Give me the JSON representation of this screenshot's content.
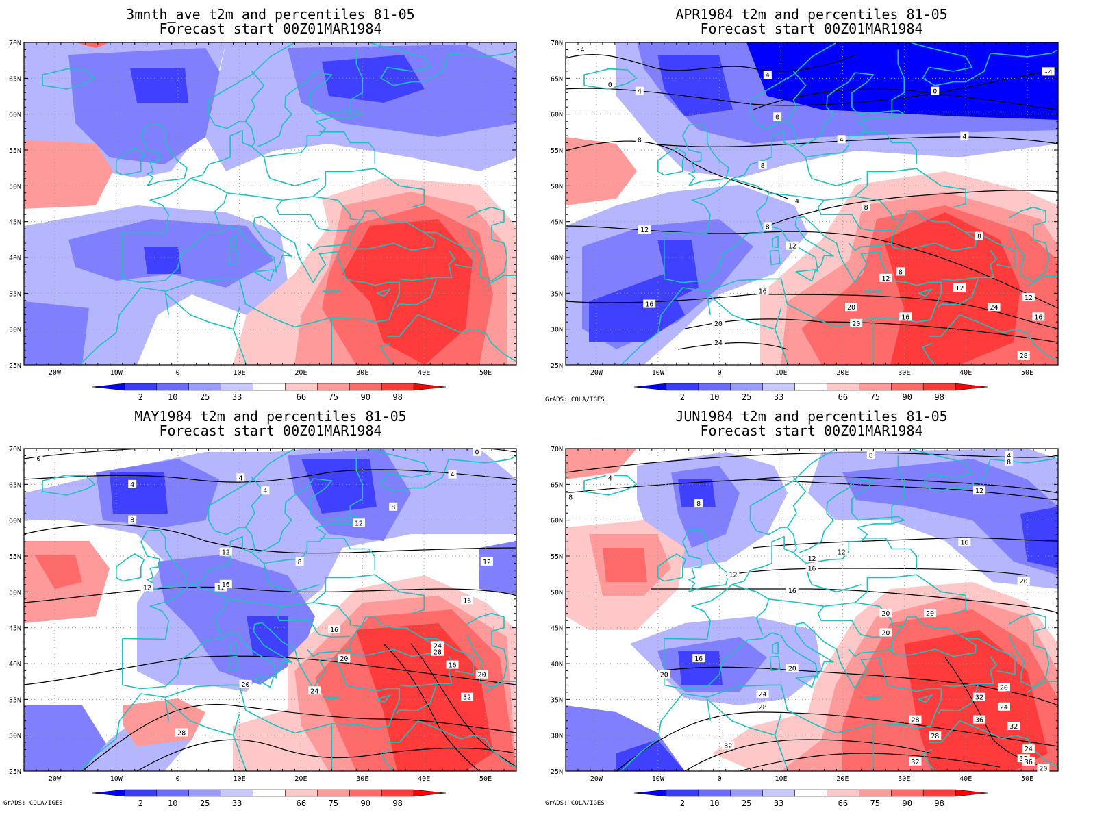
{
  "credit": "GrADS: COLA/IGES",
  "colorbar": {
    "labels": [
      "2",
      "10",
      "25",
      "33",
      "66",
      "75",
      "90",
      "98"
    ],
    "colors": [
      "#0000ff",
      "#3b3bff",
      "#6b6bff",
      "#9a9aff",
      "#c8c8ff",
      "#ffffff",
      "#ffc8c8",
      "#ff9a9a",
      "#ff6b6b",
      "#ff3b3b",
      "#ff0000"
    ]
  },
  "map": {
    "lon_labels": [
      "20W",
      "10W",
      "0",
      "10E",
      "20E",
      "30E",
      "40E",
      "50E"
    ],
    "lat_labels": [
      "70N",
      "65N",
      "60N",
      "55N",
      "50N",
      "45N",
      "40N",
      "35N",
      "30N",
      "25N"
    ],
    "coast_color": "#20c0c0",
    "grid_color": "#999999"
  },
  "panels": [
    {
      "title1": "3mnth_ave t2m and percentiles 81-05",
      "title2": "Forecast start 00Z01MAR1984",
      "show_credit": false,
      "contour_labels": []
    },
    {
      "title1": "APR1984 t2m and percentiles 81-05",
      "title2": "Forecast start 00Z01MAR1984",
      "show_credit": true,
      "contour_labels": [
        "-4",
        "0",
        "4",
        "4",
        "0",
        "0",
        "4",
        "4",
        "8",
        "8",
        "4",
        "8",
        "8",
        "8",
        "12",
        "12",
        "8",
        "12",
        "16",
        "16",
        "20",
        "20",
        "12",
        "16",
        "24",
        "20",
        "12",
        "24",
        "16",
        "28",
        "-4"
      ]
    },
    {
      "title1": "MAY1984 t2m and percentiles 81-05",
      "title2": "Forecast start 00Z01MAR1984",
      "show_credit": true,
      "contour_labels": [
        "0",
        "4",
        "4",
        "4",
        "8",
        "4",
        "0",
        "8",
        "12",
        "12",
        "12",
        "8",
        "12",
        "16",
        "12",
        "16",
        "16",
        "24",
        "28",
        "20",
        "20",
        "24",
        "20",
        "28",
        "32",
        "16"
      ]
    },
    {
      "title1": "JUN1984 t2m and percentiles 81-05",
      "title2": "Forecast start 00Z01MAR1984",
      "show_credit": true,
      "contour_labels": [
        "4",
        "8",
        "8",
        "8",
        "4",
        "8",
        "12",
        "12",
        "12",
        "12",
        "16",
        "16",
        "16",
        "20",
        "20",
        "20",
        "20",
        "16",
        "20",
        "20",
        "20",
        "24",
        "28",
        "32",
        "24",
        "28",
        "32",
        "36",
        "24",
        "28",
        "32",
        "32",
        "36",
        "20",
        "32"
      ]
    }
  ]
}
